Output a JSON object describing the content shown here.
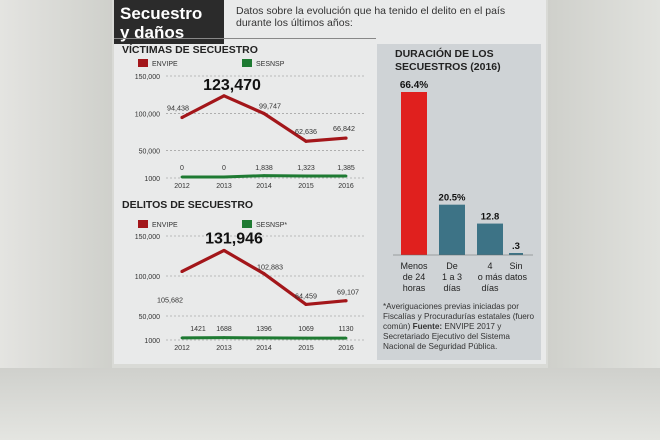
{
  "header": {
    "title_line1": "Secuestro",
    "title_line2": "y daños",
    "intro": "Datos sobre la evolución que ha tenido el delito en el país durante los últimos años:"
  },
  "colors": {
    "envipe": "#a3161a",
    "sesnsp": "#1e7a32",
    "bar_red": "#e0201e",
    "bar_teal": "#3d7386"
  },
  "chart_data": [
    {
      "type": "line",
      "title": "VÍCTIMAS DE SECUESTRO",
      "x": [
        "2012",
        "2013",
        "2014",
        "2015",
        "2016"
      ],
      "y_ticks": [
        "150,000",
        "100,000",
        "50,000",
        "1000"
      ],
      "series": [
        {
          "name": "ENVIPE",
          "values": [
            94438,
            123470,
            99747,
            62636,
            66842
          ],
          "labels": [
            "94,438",
            "123,470",
            "99,747",
            "62,636",
            "66,842"
          ]
        },
        {
          "name": "SESNSP",
          "values": [
            0,
            0,
            1838,
            1323,
            1385
          ],
          "labels": [
            "0",
            "0",
            "1,838",
            "1,323",
            "1,385"
          ]
        }
      ]
    },
    {
      "type": "line",
      "title": "DELITOS DE SECUESTRO",
      "x": [
        "2012",
        "2013",
        "2014",
        "2015",
        "2016"
      ],
      "y_ticks": [
        "150,000",
        "100,000",
        "50,000",
        "1000"
      ],
      "series": [
        {
          "name": "ENVIPE",
          "values": [
            105682,
            131946,
            102883,
            64459,
            69107
          ],
          "labels": [
            "105,682",
            "131,946",
            "102,883",
            "64,459",
            "69,107"
          ]
        },
        {
          "name": "SESNSP*",
          "values": [
            1421,
            1688,
            1396,
            1069,
            1130
          ],
          "labels": [
            "1421",
            "1688",
            "1396",
            "1069",
            "1130"
          ]
        }
      ]
    },
    {
      "type": "bar",
      "title": "DURACIÓN DE LOS SECUESTROS (2016)",
      "categories": [
        "Menos de 24 horas",
        "De 1 a 3 días",
        "4 o más días",
        "Sin datos"
      ],
      "category_lines": [
        [
          "Menos",
          "de 24",
          "horas"
        ],
        [
          "De",
          "1 a 3",
          "días"
        ],
        [
          "4",
          "o más",
          "días"
        ],
        [
          "Sin",
          "datos"
        ]
      ],
      "values": [
        66.4,
        20.5,
        12.8,
        0.3
      ],
      "labels": [
        "66.4%",
        "20.5%",
        "12.8",
        ".3"
      ]
    }
  ],
  "footnote": {
    "text": "*Averiguaciones previas iniciadas por Fiscalías y Procuradurías estatales (fuero común) ",
    "source_label": "Fuente:",
    "source_text": " ENVIPE 2017 y Secretariado Ejecutivo del Sistema Nacional de Seguridad Pública."
  }
}
